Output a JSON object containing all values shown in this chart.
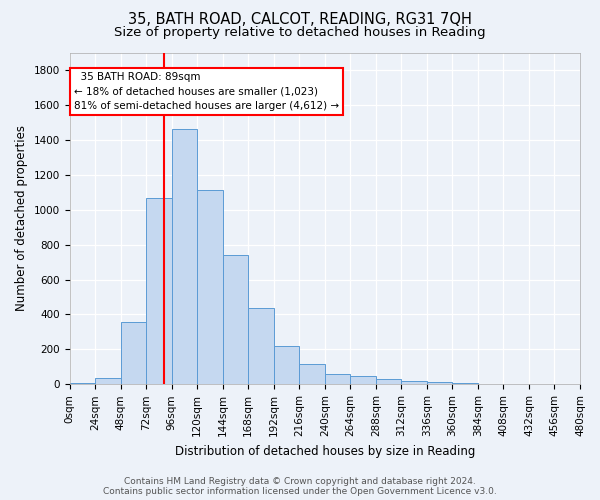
{
  "title1": "35, BATH ROAD, CALCOT, READING, RG31 7QH",
  "title2": "Size of property relative to detached houses in Reading",
  "xlabel": "Distribution of detached houses by size in Reading",
  "ylabel": "Number of detached properties",
  "footer1": "Contains HM Land Registry data © Crown copyright and database right 2024.",
  "footer2": "Contains public sector information licensed under the Open Government Licence v3.0.",
  "annotation_title": "35 BATH ROAD: 89sqm",
  "annotation_line1": "← 18% of detached houses are smaller (1,023)",
  "annotation_line2": "81% of semi-detached houses are larger (4,612) →",
  "bar_color": "#c5d8f0",
  "bar_edge_color": "#5b9bd5",
  "red_line_x": 89,
  "bin_edges": [
    0,
    24,
    48,
    72,
    96,
    120,
    144,
    168,
    192,
    216,
    240,
    264,
    288,
    312,
    336,
    360,
    384,
    408,
    432,
    456,
    480
  ],
  "bar_heights": [
    10,
    35,
    355,
    1065,
    1460,
    1115,
    740,
    435,
    220,
    115,
    58,
    48,
    30,
    18,
    12,
    7,
    4,
    3,
    2,
    1
  ],
  "ylim": [
    0,
    1900
  ],
  "yticks": [
    0,
    200,
    400,
    600,
    800,
    1000,
    1200,
    1400,
    1600,
    1800
  ],
  "background_color": "#edf2f9",
  "grid_color": "#ffffff",
  "title_fontsize": 10.5,
  "subtitle_fontsize": 9.5,
  "axis_label_fontsize": 8.5,
  "tick_fontsize": 7.5,
  "footer_fontsize": 6.5
}
